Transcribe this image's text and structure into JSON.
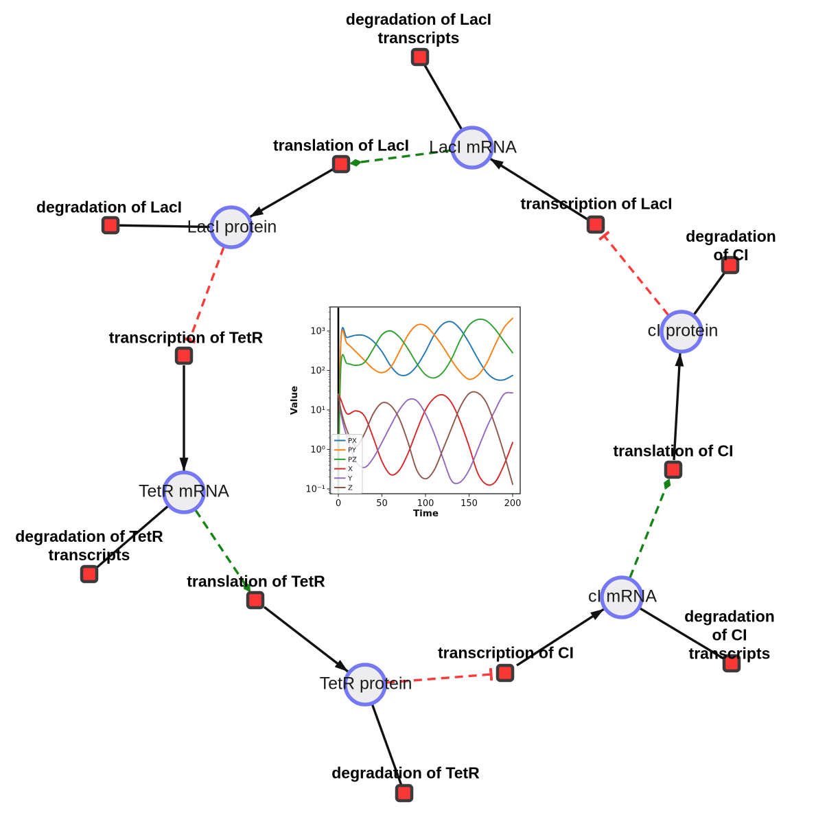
{
  "network": {
    "species": [
      {
        "id": "laci-mrna",
        "label": "LacI mRNA"
      },
      {
        "id": "laci-protein",
        "label": "LacI protein"
      },
      {
        "id": "tetr-mrna",
        "label": "TetR mRNA"
      },
      {
        "id": "tetr-protein",
        "label": "TetR protein"
      },
      {
        "id": "ci-mrna",
        "label": "cI mRNA"
      },
      {
        "id": "ci-protein",
        "label": "cI protein"
      }
    ],
    "reactions": [
      {
        "id": "deg-laci-transcripts",
        "label": "degradation of LacI\ntranscripts"
      },
      {
        "id": "translation-laci",
        "label": "translation of LacI"
      },
      {
        "id": "deg-laci",
        "label": "degradation of LacI"
      },
      {
        "id": "transcription-tetr",
        "label": "transcription of TetR"
      },
      {
        "id": "deg-tetr-transcripts",
        "label": "degradation of TetR\ntranscripts"
      },
      {
        "id": "translation-tetr",
        "label": "translation of TetR"
      },
      {
        "id": "deg-tetr",
        "label": "degradation of TetR"
      },
      {
        "id": "transcription-ci",
        "label": "transcription of CI"
      },
      {
        "id": "deg-ci-transcripts",
        "label": "degradation of CI\ntranscripts"
      },
      {
        "id": "translation-ci",
        "label": "translation of CI"
      },
      {
        "id": "deg-ci",
        "label": "degradation of CI"
      },
      {
        "id": "transcription-laci",
        "label": "transcription of LacI"
      }
    ],
    "style_colors": {
      "species_fill": "#ededef",
      "species_stroke": "#7478f5",
      "reaction_fill": "#fa3737",
      "reaction_stroke": "#3b3b3b",
      "plain_edge": "#111111",
      "activation_edge": "#168316",
      "inhibition_edge": "#fb3b3b"
    }
  },
  "chart_data": {
    "type": "line",
    "title": "",
    "xlabel": "Time",
    "ylabel": "Value",
    "yscale": "log",
    "xlim": [
      -10,
      210
    ],
    "ylim": [
      0.074,
      4000
    ],
    "x_ticks": [
      0,
      50,
      100,
      150,
      200
    ],
    "y_ticks": [
      {
        "value": 0.1,
        "label": "10⁻¹"
      },
      {
        "value": 1,
        "label": "10⁰"
      },
      {
        "value": 10,
        "label": "10¹"
      },
      {
        "value": 100,
        "label": "10²"
      },
      {
        "value": 1000,
        "label": "10³"
      }
    ],
    "legend_position": "lower left",
    "grid": false,
    "annotations": [
      {
        "type": "vline",
        "x": 0,
        "color": "#000000"
      }
    ],
    "x": [
      0,
      3,
      10,
      20,
      30,
      40,
      50,
      60,
      70,
      80,
      90,
      100,
      110,
      120,
      130,
      140,
      150,
      160,
      170,
      180,
      190,
      200
    ],
    "series": [
      {
        "name": "PX",
        "color": "#1f77b4",
        "values": [
          0.07,
          600,
          680,
          780,
          760,
          550,
          300,
          130,
          78,
          80,
          130,
          300,
          800,
          1500,
          1700,
          1100,
          500,
          200,
          90,
          60,
          58,
          75
        ]
      },
      {
        "name": "PY",
        "color": "#ff7f0e",
        "values": [
          0.07,
          550,
          480,
          300,
          180,
          110,
          88,
          120,
          300,
          800,
          1400,
          1350,
          800,
          400,
          180,
          90,
          60,
          75,
          150,
          450,
          1200,
          2100
        ]
      },
      {
        "name": "PZ",
        "color": "#2ca02c",
        "values": [
          0.07,
          140,
          150,
          135,
          160,
          350,
          800,
          1000,
          700,
          350,
          150,
          78,
          65,
          90,
          200,
          600,
          1400,
          1950,
          1800,
          1100,
          550,
          280
        ]
      },
      {
        "name": "X",
        "color": "#d62728",
        "values": [
          25,
          18,
          8,
          9.5,
          7,
          2,
          0.5,
          0.23,
          0.3,
          0.8,
          3,
          10,
          20,
          24,
          15,
          5,
          1.2,
          0.25,
          0.13,
          0.15,
          0.4,
          1.5
        ]
      },
      {
        "name": "Y",
        "color": "#9467bd",
        "values": [
          25,
          8,
          2,
          0.5,
          0.35,
          0.6,
          1.5,
          4,
          10,
          18,
          17,
          8,
          2.5,
          0.6,
          0.16,
          0.15,
          0.3,
          1,
          3.5,
          10,
          25,
          27
        ]
      },
      {
        "name": "Z",
        "color": "#8c564b",
        "values": [
          25,
          10,
          3,
          1.2,
          2.5,
          8,
          15,
          13,
          6,
          1.5,
          0.3,
          0.18,
          0.3,
          1,
          3.5,
          12,
          26,
          27,
          15,
          4,
          0.8,
          0.13
        ]
      }
    ]
  }
}
